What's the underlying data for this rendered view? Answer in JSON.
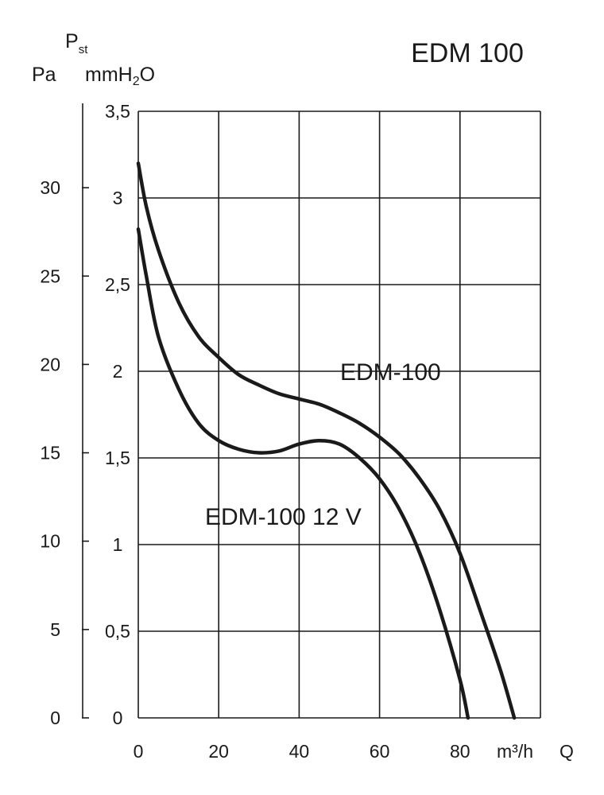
{
  "chart_data": {
    "type": "line",
    "title": "EDM 100",
    "x_axis": {
      "label": "Q",
      "unit": "m³/h",
      "ticks": [
        "0",
        "20",
        "40",
        "60",
        "80"
      ],
      "range": [
        0,
        100
      ],
      "grid": true
    },
    "y_axis_left": {
      "label_main": "P",
      "label_sub": "st",
      "unit": "Pa",
      "ticks": [
        "0",
        "5",
        "10",
        "15",
        "20",
        "25",
        "30"
      ],
      "tick_values": [
        0,
        5,
        10,
        15,
        20,
        25,
        30
      ]
    },
    "y_axis_right": {
      "unit_prefix": "mmH",
      "unit_sub": "2",
      "unit_suffix": "O",
      "ticks": [
        "0",
        "0,5",
        "1",
        "1,5",
        "2",
        "2,5",
        "3",
        "3,5"
      ],
      "tick_values": [
        0,
        0.5,
        1,
        1.5,
        2,
        2.5,
        3,
        3.5
      ],
      "range": [
        0,
        3.5
      ],
      "grid": true
    },
    "series": [
      {
        "name": "EDM-100",
        "points": [
          [
            0,
            3.2
          ],
          [
            2,
            2.95
          ],
          [
            5,
            2.7
          ],
          [
            10,
            2.4
          ],
          [
            15,
            2.2
          ],
          [
            20,
            2.08
          ],
          [
            25,
            1.98
          ],
          [
            30,
            1.92
          ],
          [
            35,
            1.87
          ],
          [
            40,
            1.84
          ],
          [
            45,
            1.81
          ],
          [
            50,
            1.76
          ],
          [
            55,
            1.7
          ],
          [
            60,
            1.62
          ],
          [
            65,
            1.52
          ],
          [
            70,
            1.38
          ],
          [
            75,
            1.2
          ],
          [
            80,
            0.95
          ],
          [
            85,
            0.62
          ],
          [
            90,
            0.28
          ],
          [
            93.5,
            0.0
          ]
        ]
      },
      {
        "name": "EDM-100 12 V",
        "points": [
          [
            0,
            2.82
          ],
          [
            2,
            2.55
          ],
          [
            5,
            2.2
          ],
          [
            10,
            1.9
          ],
          [
            15,
            1.7
          ],
          [
            20,
            1.6
          ],
          [
            25,
            1.55
          ],
          [
            30,
            1.53
          ],
          [
            35,
            1.54
          ],
          [
            40,
            1.58
          ],
          [
            45,
            1.6
          ],
          [
            50,
            1.58
          ],
          [
            55,
            1.5
          ],
          [
            60,
            1.38
          ],
          [
            65,
            1.2
          ],
          [
            70,
            0.95
          ],
          [
            75,
            0.62
          ],
          [
            80,
            0.22
          ],
          [
            82,
            0.0
          ]
        ]
      }
    ]
  }
}
